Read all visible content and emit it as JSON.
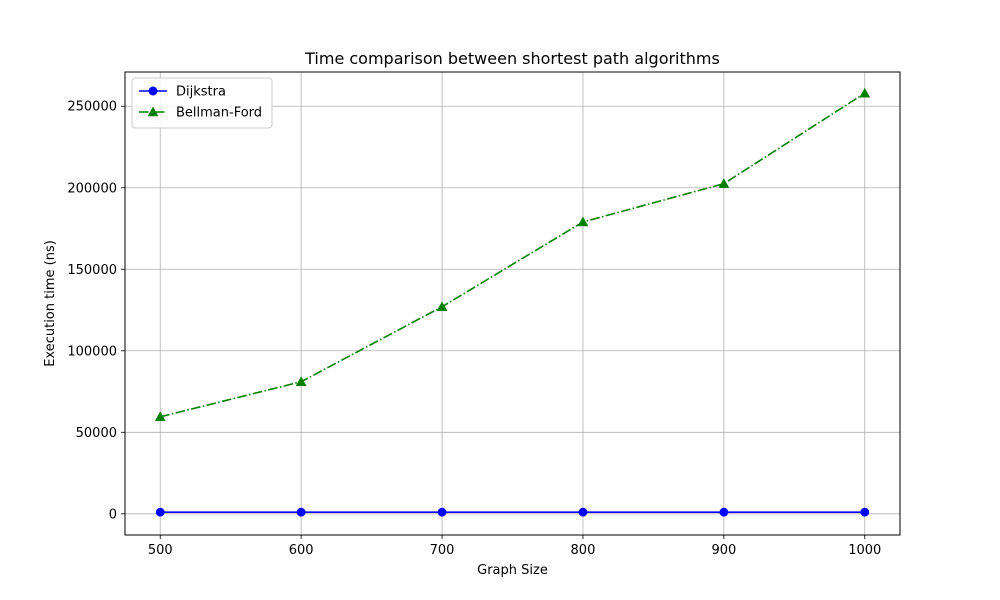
{
  "chart_data": {
    "type": "line",
    "title": "Time comparison between shortest path algorithms",
    "xlabel": "Graph Size",
    "ylabel": "Execution time (ns)",
    "x": [
      500,
      600,
      700,
      800,
      900,
      1000
    ],
    "xlim": [
      475,
      1025
    ],
    "ylim": [
      -13000,
      271000
    ],
    "xticks": [
      500,
      600,
      700,
      800,
      900,
      1000
    ],
    "yticks": [
      0,
      50000,
      100000,
      150000,
      200000,
      250000
    ],
    "grid": true,
    "legend_position": "top-left",
    "series": [
      {
        "name": "Dijkstra",
        "values": [
          1000,
          1000,
          1000,
          1000,
          1000,
          1000
        ],
        "color": "#0000ff",
        "marker": "circle",
        "line_style": "solid"
      },
      {
        "name": "Bellman-Ford",
        "values": [
          59500,
          81000,
          127000,
          179000,
          202500,
          258000
        ],
        "color": "#008000",
        "marker": "triangle-up",
        "line_style": "dashdot"
      }
    ]
  }
}
